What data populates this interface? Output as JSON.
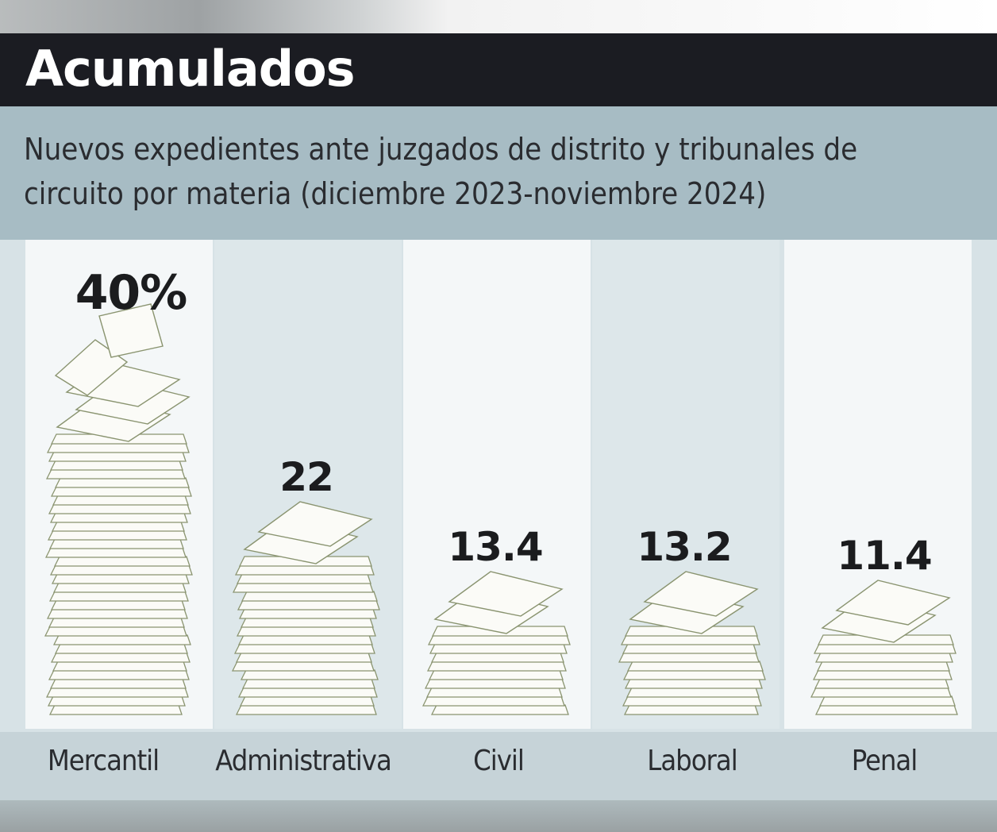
{
  "header": {
    "title": "Acumulados",
    "subtitle": "Nuevos expedientes ante juzgados de distrito y tribunales de circuito por materia (diciembre 2023-noviembre 2024)"
  },
  "chart_data": {
    "type": "bar",
    "title": "Acumulados",
    "subtitle": "Nuevos expedientes ante juzgados de distrito y tribunales de circuito por materia (diciembre 2023-noviembre 2024)",
    "categories": [
      "Mercantil",
      "Administrativa",
      "Civil",
      "Laboral",
      "Penal"
    ],
    "values": [
      40,
      22,
      13.4,
      13.2,
      11.4
    ],
    "value_labels": [
      "40%",
      "22",
      "13.4",
      "13.2",
      "11.4"
    ],
    "unit": "%",
    "xlabel": "",
    "ylabel": "",
    "ylim": [
      0,
      40
    ],
    "grid": false,
    "legend": "none",
    "colors": {
      "title_band": "#1b1c22",
      "subtitle_band": "#a7bcc4",
      "column_light": "#f4f7f8",
      "column_dark": "#dde7ea",
      "paper": "#fbfbf7",
      "paper_line": "#8a9470"
    }
  }
}
